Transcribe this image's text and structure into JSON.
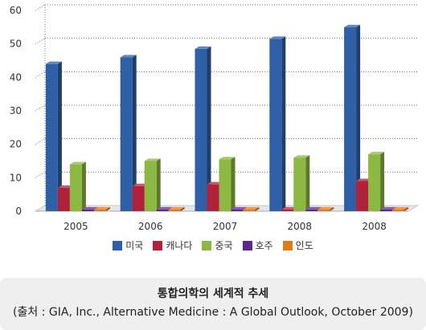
{
  "chart_data": {
    "type": "bar",
    "categories": [
      "2005",
      "2006",
      "2007",
      "2008",
      "2008"
    ],
    "series": [
      {
        "name": "미국",
        "color": "#2f5fa7",
        "values": [
          44,
          46,
          48.5,
          51.5,
          55
        ]
      },
      {
        "name": "캐나다",
        "color": "#b0213a",
        "values": [
          7,
          7.5,
          8,
          0.5,
          9
        ]
      },
      {
        "name": "중국",
        "color": "#8db843",
        "values": [
          14,
          15,
          15.5,
          16,
          17
        ]
      },
      {
        "name": "호주",
        "color": "#5a2a8a",
        "values": [
          0.5,
          0.5,
          0.5,
          0.5,
          0.5
        ]
      },
      {
        "name": "인도",
        "color": "#e07a1f",
        "values": [
          0.5,
          0.5,
          0.5,
          0.5,
          0.5
        ]
      }
    ],
    "ylim": [
      0,
      60
    ],
    "yticks": [
      0,
      10,
      20,
      30,
      40,
      50,
      60
    ],
    "grid": true,
    "legend_position": "bottom"
  },
  "caption": {
    "title": "통합의학의 세계적 추세",
    "source": "(출처 : GIA, Inc., Alternative Medicine : A Global Outlook, October 2009)"
  }
}
